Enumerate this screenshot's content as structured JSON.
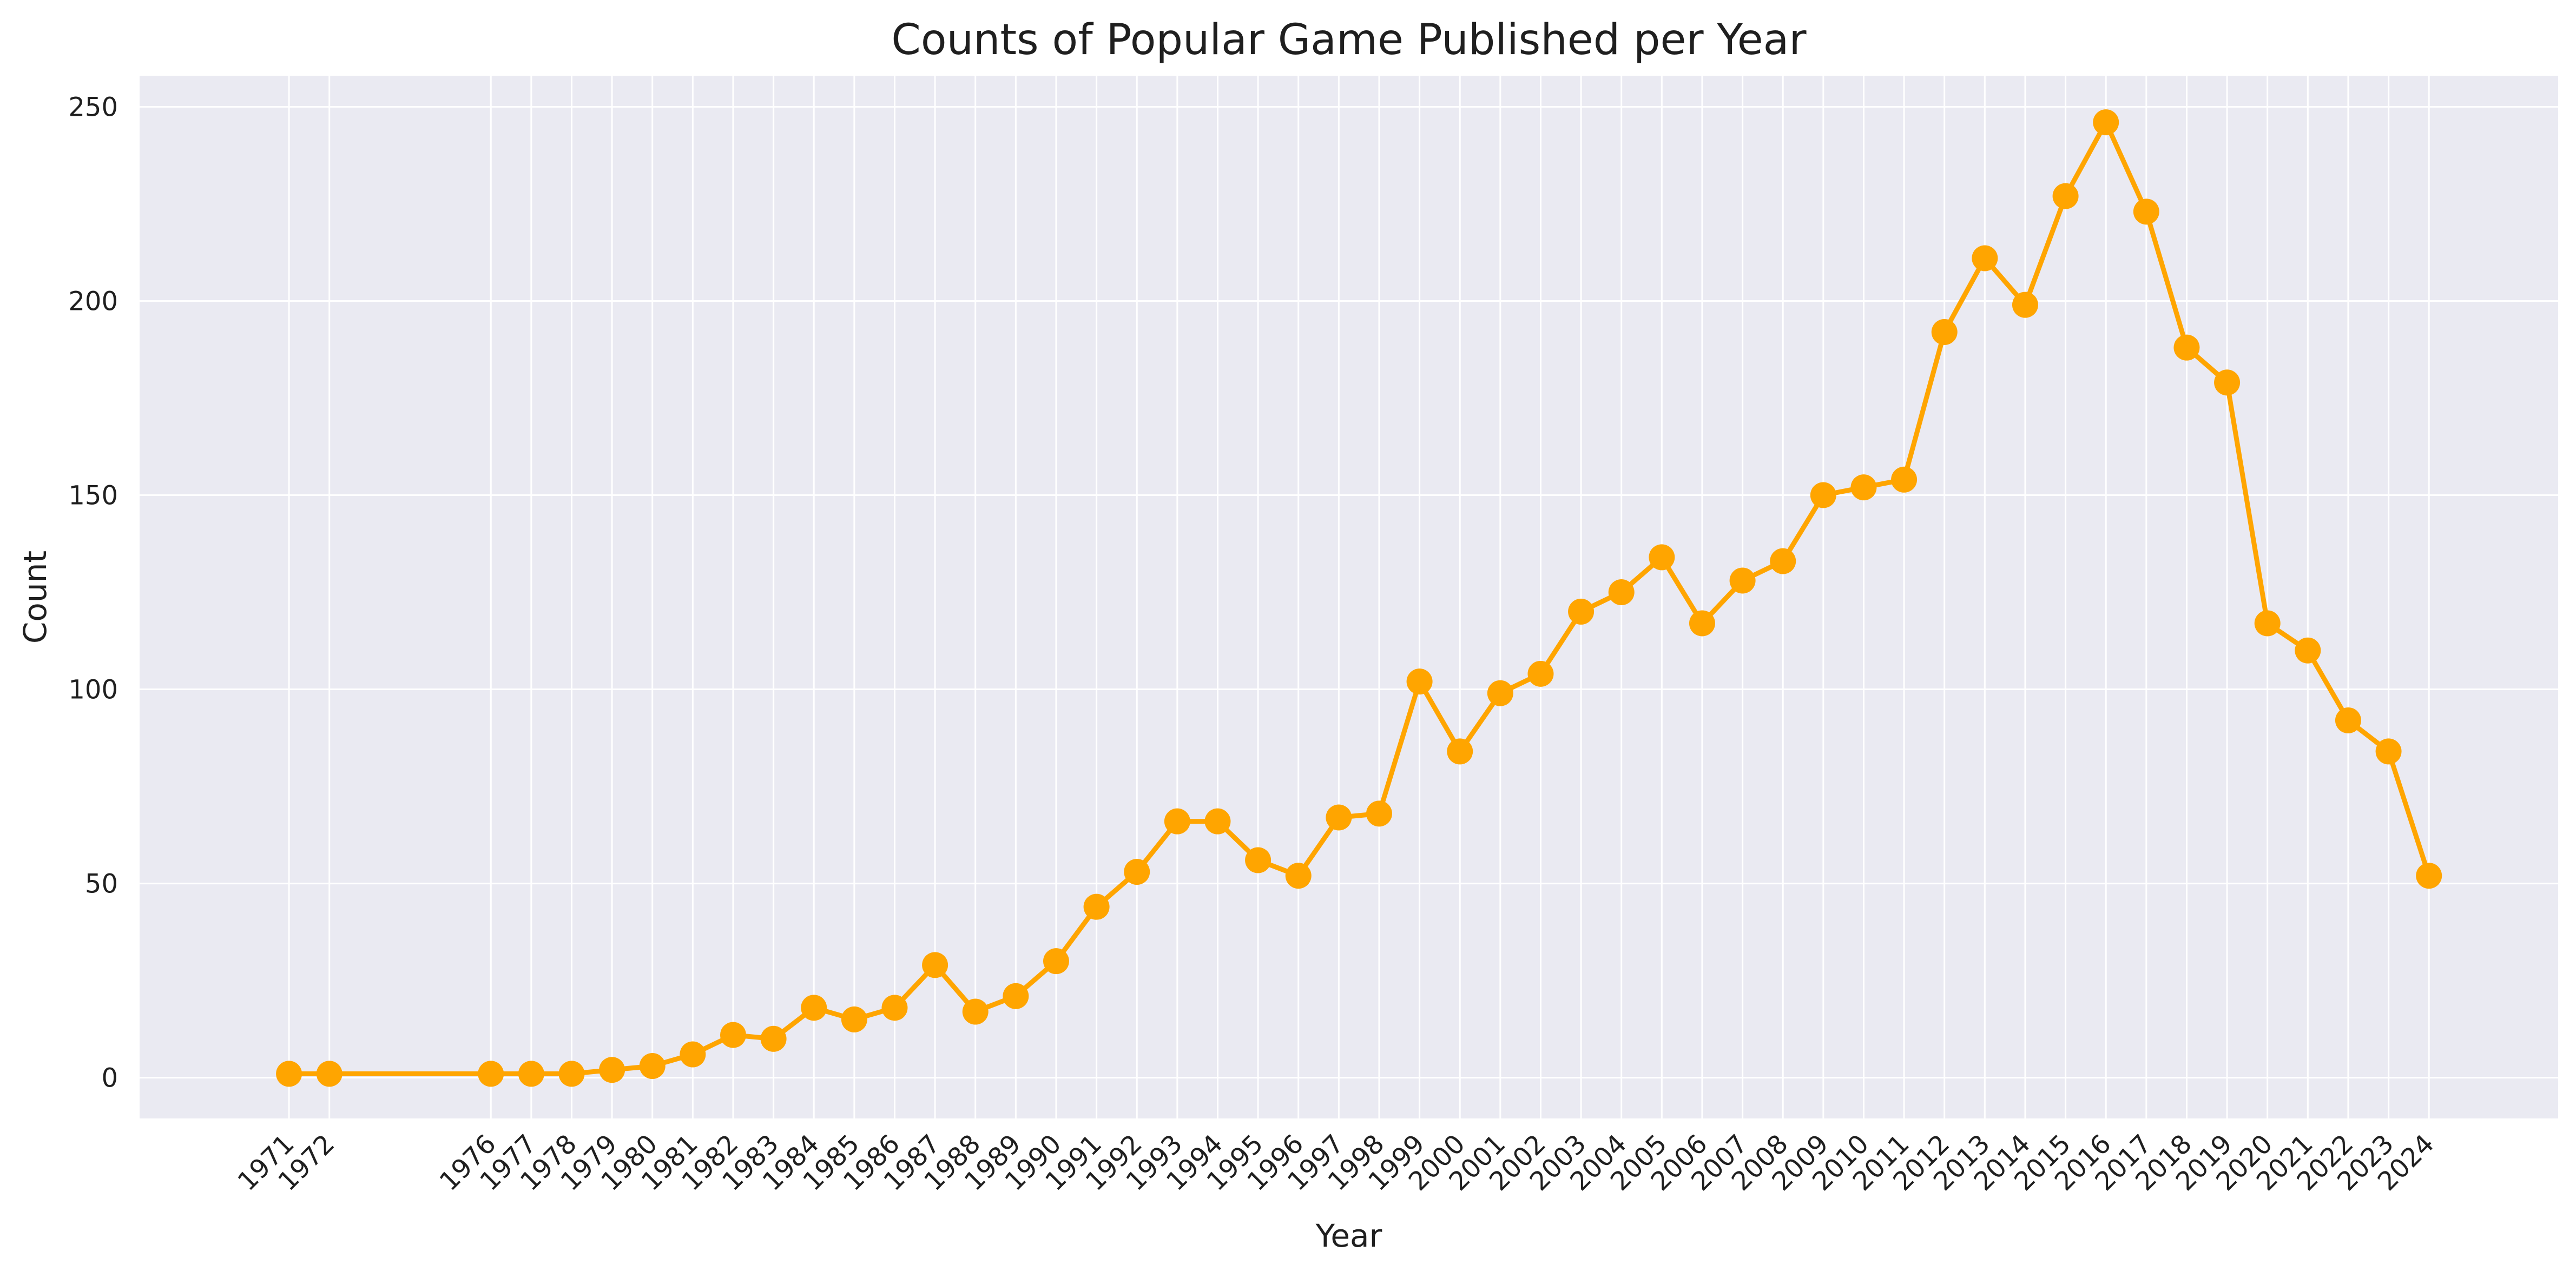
{
  "chart_data": {
    "type": "line",
    "title": "Counts of Popular Game Published per Year",
    "xlabel": "Year",
    "ylabel": "Count",
    "x": [
      1971,
      1972,
      1976,
      1977,
      1978,
      1979,
      1980,
      1981,
      1982,
      1983,
      1984,
      1985,
      1986,
      1987,
      1988,
      1989,
      1990,
      1991,
      1992,
      1993,
      1994,
      1995,
      1996,
      1997,
      1998,
      1999,
      2000,
      2001,
      2002,
      2003,
      2004,
      2005,
      2006,
      2007,
      2008,
      2009,
      2010,
      2011,
      2012,
      2013,
      2014,
      2015,
      2016,
      2017,
      2018,
      2019,
      2020,
      2021,
      2022,
      2023,
      2024
    ],
    "series": [
      {
        "values": [
          1,
          1,
          1,
          1,
          1,
          2,
          3,
          6,
          11,
          10,
          18,
          15,
          18,
          29,
          17,
          21,
          30,
          44,
          53,
          66,
          66,
          56,
          52,
          67,
          68,
          102,
          84,
          99,
          104,
          120,
          125,
          134,
          117,
          128,
          133,
          150,
          152,
          154,
          192,
          211,
          199,
          227,
          246,
          223,
          188,
          179,
          117,
          110,
          92,
          84,
          52
        ]
      }
    ],
    "xlim": [
      1967.3,
      2027.2
    ],
    "ylim": [
      -10.5,
      258
    ],
    "yticks": [
      0,
      50,
      100,
      150,
      200,
      250
    ],
    "xtick_labels": [
      "1971",
      "1972",
      "1976",
      "1977",
      "1978",
      "1979",
      "1980",
      "1981",
      "1982",
      "1983",
      "1984",
      "1985",
      "1986",
      "1987",
      "1988",
      "1989",
      "1990",
      "1991",
      "1992",
      "1993",
      "1994",
      "1995",
      "1996",
      "1997",
      "1998",
      "1999",
      "2000",
      "2001",
      "2002",
      "2003",
      "2004",
      "2005",
      "2006",
      "2007",
      "2008",
      "2009",
      "2010",
      "2011",
      "2012",
      "2013",
      "2014",
      "2015",
      "2016",
      "2017",
      "2018",
      "2019",
      "2020",
      "2021",
      "2022",
      "2023",
      "2024"
    ],
    "grid": true,
    "line_color": "#FFA500",
    "background_color": "#EAEAF2",
    "grid_color": "#FFFFFF"
  }
}
